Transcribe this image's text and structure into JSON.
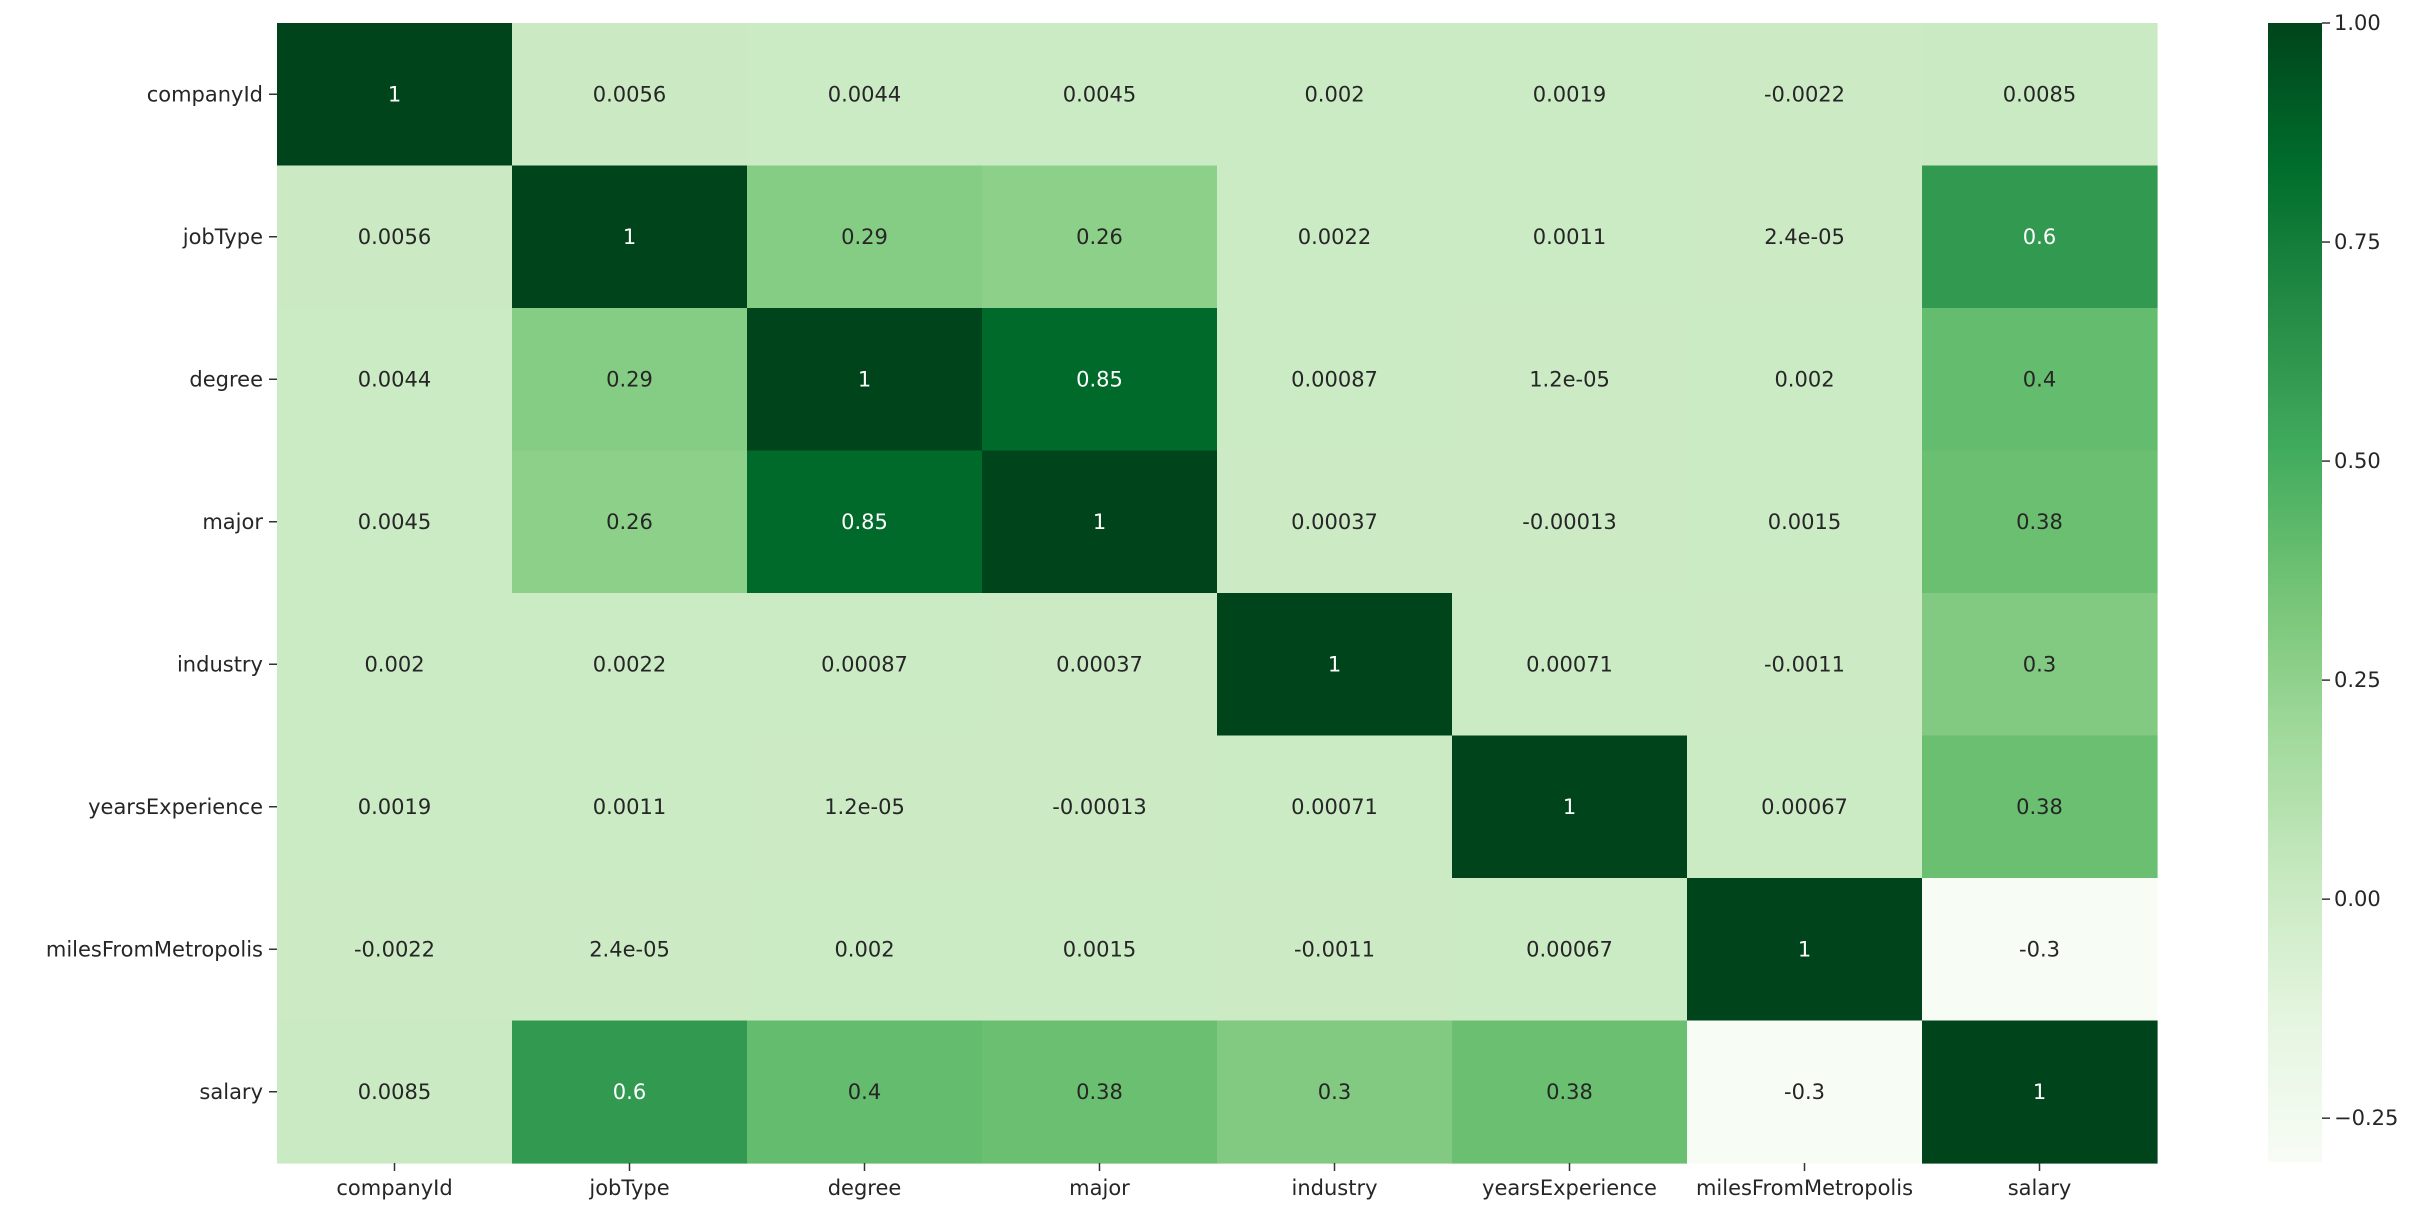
{
  "chart_data": {
    "type": "heatmap",
    "title": "",
    "xlabel": "",
    "ylabel": "",
    "rows": [
      "companyId",
      "jobType",
      "degree",
      "major",
      "industry",
      "yearsExperience",
      "milesFromMetropolis",
      "salary"
    ],
    "columns": [
      "companyId",
      "jobType",
      "degree",
      "major",
      "industry",
      "yearsExperience",
      "milesFromMetropolis",
      "salary"
    ],
    "values": [
      [
        1,
        0.0056,
        0.0044,
        0.0045,
        0.002,
        0.0019,
        -0.0022,
        0.0085
      ],
      [
        0.0056,
        1,
        0.29,
        0.26,
        0.0022,
        0.0011,
        2.4e-05,
        0.6
      ],
      [
        0.0044,
        0.29,
        1,
        0.85,
        0.00087,
        1.2e-05,
        0.002,
        0.4
      ],
      [
        0.0045,
        0.26,
        0.85,
        1,
        0.00037,
        -0.00013,
        0.0015,
        0.38
      ],
      [
        0.002,
        0.0022,
        0.00087,
        0.00037,
        1,
        0.00071,
        -0.0011,
        0.3
      ],
      [
        0.0019,
        0.0011,
        1.2e-05,
        -0.00013,
        0.00071,
        1,
        0.00067,
        0.38
      ],
      [
        -0.0022,
        2.4e-05,
        0.002,
        0.0015,
        -0.0011,
        0.00067,
        1,
        -0.3
      ],
      [
        0.0085,
        0.6,
        0.4,
        0.38,
        0.3,
        0.38,
        -0.3,
        1
      ]
    ],
    "annotations": [
      [
        "1",
        "0.0056",
        "0.0044",
        "0.0045",
        "0.002",
        "0.0019",
        "-0.0022",
        "0.0085"
      ],
      [
        "0.0056",
        "1",
        "0.29",
        "0.26",
        "0.0022",
        "0.0011",
        "2.4e-05",
        "0.6"
      ],
      [
        "0.0044",
        "0.29",
        "1",
        "0.85",
        "0.00087",
        "1.2e-05",
        "0.002",
        "0.4"
      ],
      [
        "0.0045",
        "0.26",
        "0.85",
        "1",
        "0.00037",
        "-0.00013",
        "0.0015",
        "0.38"
      ],
      [
        "0.002",
        "0.0022",
        "0.00087",
        "0.00037",
        "1",
        "0.00071",
        "-0.0011",
        "0.3"
      ],
      [
        "0.0019",
        "0.0011",
        "1.2e-05",
        "-0.00013",
        "0.00071",
        "1",
        "0.00067",
        "0.38"
      ],
      [
        "-0.0022",
        "2.4e-05",
        "0.002",
        "0.0015",
        "-0.0011",
        "0.00067",
        "1",
        "-0.3"
      ],
      [
        "0.0085",
        "0.6",
        "0.4",
        "0.38",
        "0.3",
        "0.38",
        "-0.3",
        "1"
      ]
    ],
    "colorscale": {
      "name": "Greens",
      "vmin": -0.3,
      "vmax": 1,
      "ticks": [
        -0.25,
        0,
        0.25,
        0.5,
        0.75,
        1
      ],
      "tick_labels": [
        "−0.25",
        "0.00",
        "0.25",
        "0.50",
        "0.75",
        "1.00"
      ]
    },
    "colors": [
      "#f7fcf5",
      "#e5f5e0",
      "#c7e9c0",
      "#a1d99b",
      "#74c476",
      "#41ab5d",
      "#238b45",
      "#006d2c",
      "#00441b"
    ],
    "colorbar_placement": "right",
    "grid": false
  }
}
